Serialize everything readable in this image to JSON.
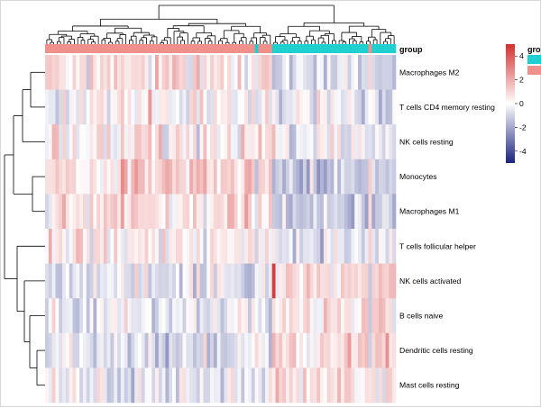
{
  "chart_data": {
    "type": "heatmap",
    "title": "",
    "rows": [
      "Macrophages M2",
      "T cells CD4 memory resting",
      "NK cells resting",
      "Monocytes",
      "Macrophages M1",
      "T cells follicular helper",
      "NK cells activated",
      "B cells naive",
      "Dendritic cells resting",
      "Mast cells resting"
    ],
    "annotation": {
      "name": "group",
      "legend_title": "gro",
      "colors": [
        "#20d0d0",
        "#f0908a"
      ],
      "column_groups": [
        {
          "group_index": 1,
          "count": 61
        },
        {
          "group_index": 0,
          "count": 1
        },
        {
          "group_index": 1,
          "count": 4
        },
        {
          "group_index": 0,
          "count": 28
        },
        {
          "group_index": 1,
          "count": 1
        },
        {
          "group_index": 0,
          "count": 7
        }
      ]
    },
    "legend": {
      "ticks": [
        4,
        2,
        0,
        -2,
        -4
      ],
      "range": [
        -5,
        5
      ],
      "low_color": "#1a237e",
      "mid_color": "#ffffff",
      "high_color": "#d32f2f"
    },
    "n_columns": 102,
    "seed": 20240607
  },
  "labels": {
    "group_label": "group"
  }
}
